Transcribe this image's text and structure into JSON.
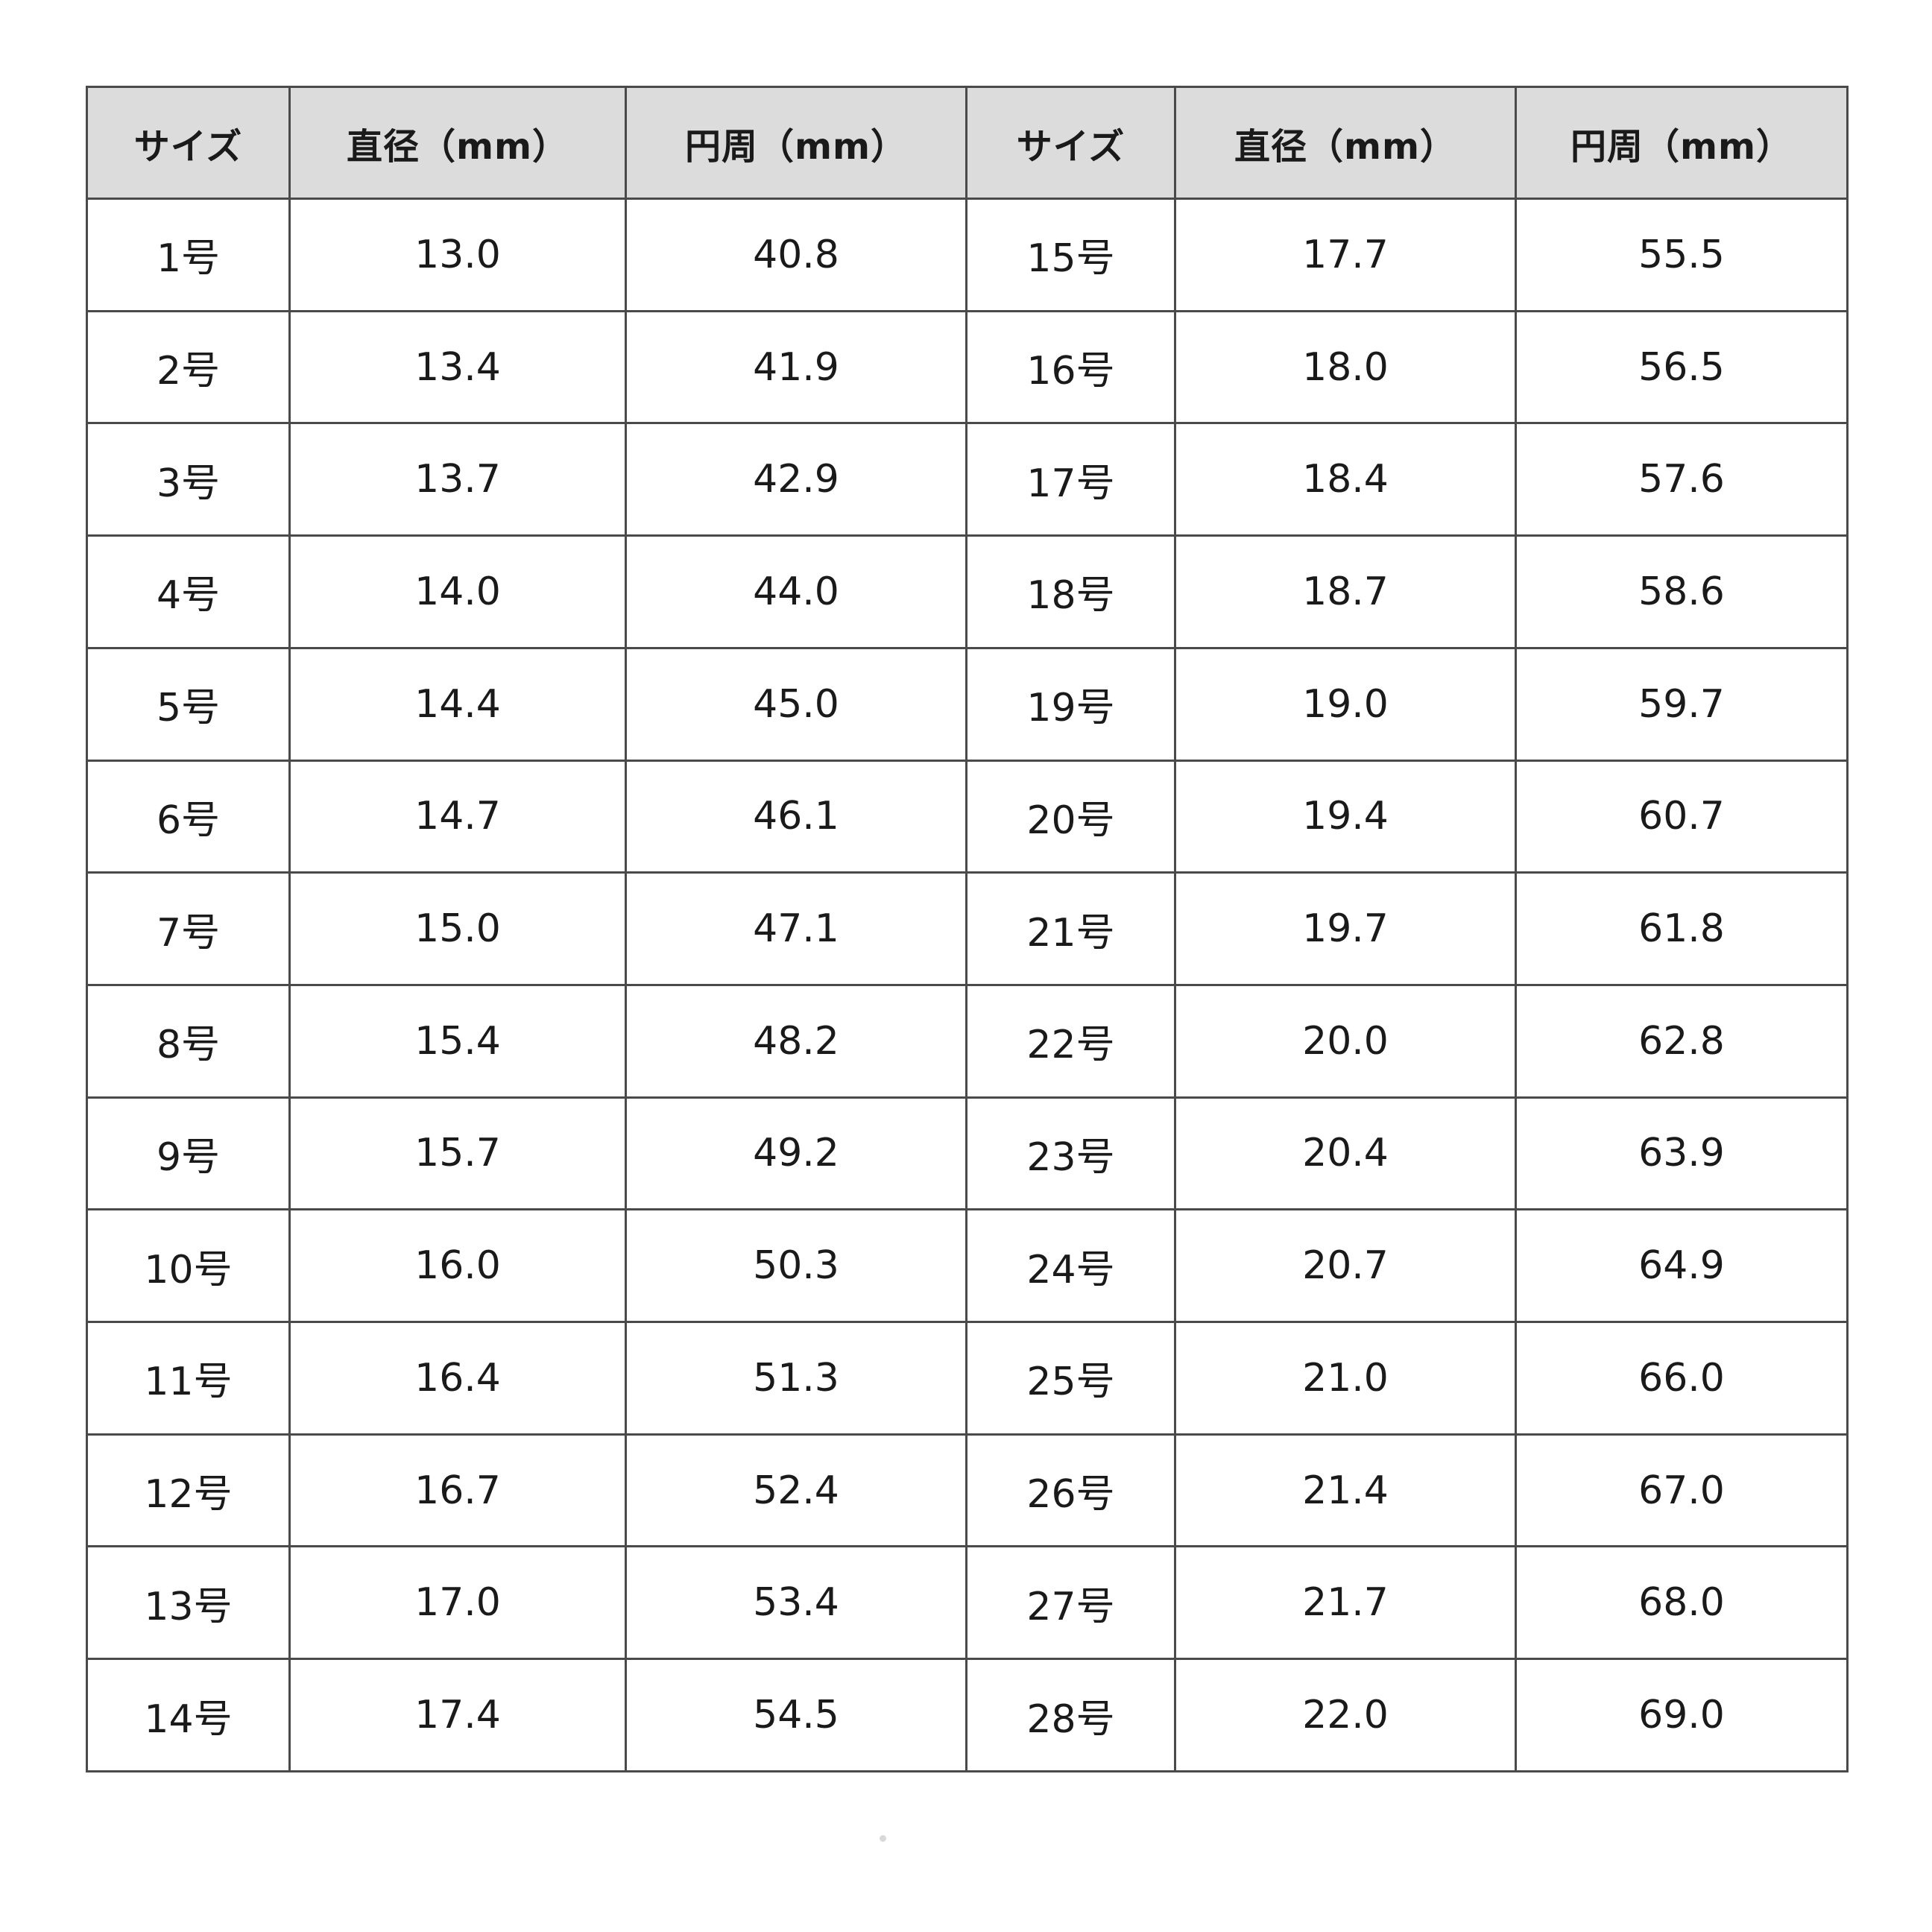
{
  "colors": {
    "page_bg": "#ffffff",
    "header_bg": "#dcdcdc",
    "border": "#4a4a4a",
    "text": "#1a1a1a"
  },
  "chart_data": {
    "type": "table",
    "columns": [
      "サイズ",
      "直径（mm）",
      "円周（mm）",
      "サイズ",
      "直径（mm）",
      "円周（mm）"
    ],
    "rows": [
      [
        "1号",
        "13.0",
        "40.8",
        "15号",
        "17.7",
        "55.5"
      ],
      [
        "2号",
        "13.4",
        "41.9",
        "16号",
        "18.0",
        "56.5"
      ],
      [
        "3号",
        "13.7",
        "42.9",
        "17号",
        "18.4",
        "57.6"
      ],
      [
        "4号",
        "14.0",
        "44.0",
        "18号",
        "18.7",
        "58.6"
      ],
      [
        "5号",
        "14.4",
        "45.0",
        "19号",
        "19.0",
        "59.7"
      ],
      [
        "6号",
        "14.7",
        "46.1",
        "20号",
        "19.4",
        "60.7"
      ],
      [
        "7号",
        "15.0",
        "47.1",
        "21号",
        "19.7",
        "61.8"
      ],
      [
        "8号",
        "15.4",
        "48.2",
        "22号",
        "20.0",
        "62.8"
      ],
      [
        "9号",
        "15.7",
        "49.2",
        "23号",
        "20.4",
        "63.9"
      ],
      [
        "10号",
        "16.0",
        "50.3",
        "24号",
        "20.7",
        "64.9"
      ],
      [
        "11号",
        "16.4",
        "51.3",
        "25号",
        "21.0",
        "66.0"
      ],
      [
        "12号",
        "16.7",
        "52.4",
        "26号",
        "21.4",
        "67.0"
      ],
      [
        "13号",
        "17.0",
        "53.4",
        "27号",
        "21.7",
        "68.0"
      ],
      [
        "14号",
        "17.4",
        "54.5",
        "28号",
        "22.0",
        "69.0"
      ]
    ],
    "layout": {
      "grid": "on",
      "legend": "none",
      "header_row": true,
      "paired_columns": true
    }
  }
}
